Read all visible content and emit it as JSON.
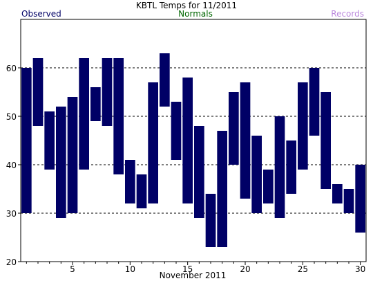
{
  "chart_data": {
    "type": "bar",
    "title": "KBTL Temps for 11/2011",
    "xlabel": "November 2011",
    "ylabel": "",
    "legend": [
      {
        "name": "Observed",
        "color": "#000066"
      },
      {
        "name": "Normals",
        "color": "#006600"
      },
      {
        "name": "Records",
        "color": "#bb88dd"
      }
    ],
    "ylim": [
      20,
      70
    ],
    "xlim": [
      0.5,
      30.5
    ],
    "y_ticks": [
      20,
      30,
      40,
      50,
      60
    ],
    "x_ticks": [
      5,
      10,
      15,
      20,
      25,
      30
    ],
    "grid_y": [
      30,
      40,
      50,
      60
    ],
    "series": [
      {
        "name": "Observed",
        "color": "#000066",
        "days": [
          1,
          2,
          3,
          4,
          5,
          6,
          7,
          8,
          9,
          10,
          11,
          12,
          13,
          14,
          15,
          16,
          17,
          18,
          19,
          20,
          21,
          22,
          23,
          24,
          25,
          26,
          27,
          28,
          29,
          30
        ],
        "high": [
          60,
          62,
          51,
          52,
          54,
          62,
          56,
          62,
          62,
          41,
          38,
          57,
          63,
          53,
          58,
          48,
          34,
          47,
          55,
          57,
          46,
          39,
          50,
          45,
          57,
          60,
          55,
          36,
          35,
          40
        ],
        "low": [
          30,
          48,
          39,
          29,
          30,
          39,
          49,
          48,
          38,
          32,
          31,
          32,
          52,
          41,
          32,
          29,
          23,
          23,
          40,
          33,
          30,
          32,
          29,
          34,
          39,
          46,
          35,
          32,
          30,
          26
        ]
      }
    ]
  }
}
